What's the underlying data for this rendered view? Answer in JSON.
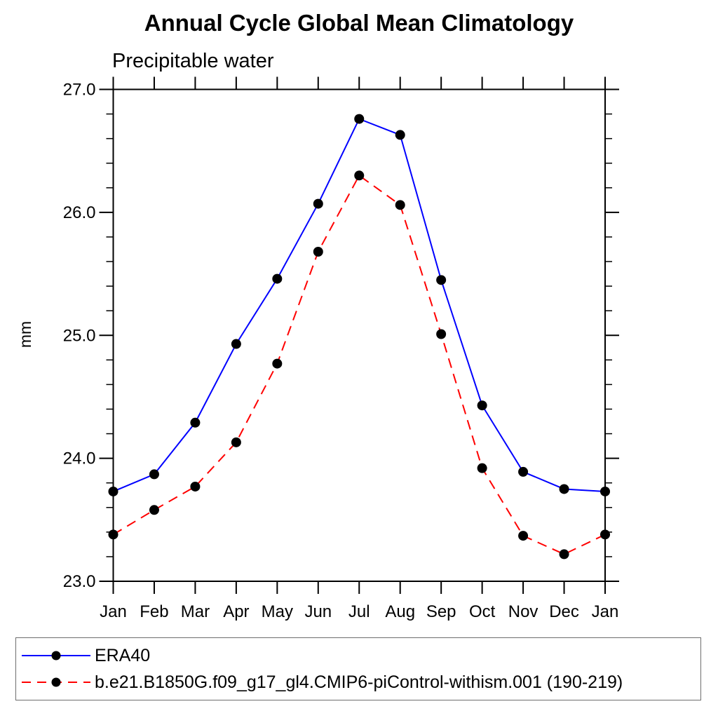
{
  "chart_data": {
    "type": "line",
    "title": "Annual Cycle Global Mean Climatology",
    "subtitle": "Precipitable water",
    "ylabel": "mm",
    "xlabel": "",
    "x_categories": [
      "Jan",
      "Feb",
      "Mar",
      "Apr",
      "May",
      "Jun",
      "Jul",
      "Aug",
      "Sep",
      "Oct",
      "Nov",
      "Dec",
      "Jan"
    ],
    "ylim": [
      23.0,
      27.0
    ],
    "y_major_tick_labels": [
      "23.0",
      "24.0",
      "25.0",
      "26.0",
      "27.0"
    ],
    "y_major_step": 1.0,
    "y_minor_step": 0.2,
    "grid": false,
    "frame": "box-with-outward-ticks",
    "legend_position": "bottom-left-box",
    "colors": {
      "axis": "#000000",
      "text": "#000000",
      "marker": "#000000",
      "series1": "#0000ff",
      "series2": "#ff0000",
      "background": "#ffffff"
    },
    "series": [
      {
        "name": "ERA40",
        "color": "#0000ff",
        "line_style": "solid",
        "marker": "filled-circle",
        "marker_color": "#000000",
        "values": [
          23.73,
          23.87,
          24.29,
          24.93,
          25.46,
          26.07,
          26.76,
          26.63,
          25.45,
          24.43,
          23.89,
          23.75,
          23.73
        ]
      },
      {
        "name": "b.e21.B1850G.f09_g17_gl4.CMIP6-piControl-withism.001 (190-219)",
        "color": "#ff0000",
        "line_style": "dashed",
        "marker": "filled-circle",
        "marker_color": "#000000",
        "values": [
          23.38,
          23.58,
          23.77,
          24.13,
          24.77,
          25.68,
          26.3,
          26.06,
          25.01,
          23.92,
          23.37,
          23.22,
          23.38
        ]
      }
    ]
  }
}
